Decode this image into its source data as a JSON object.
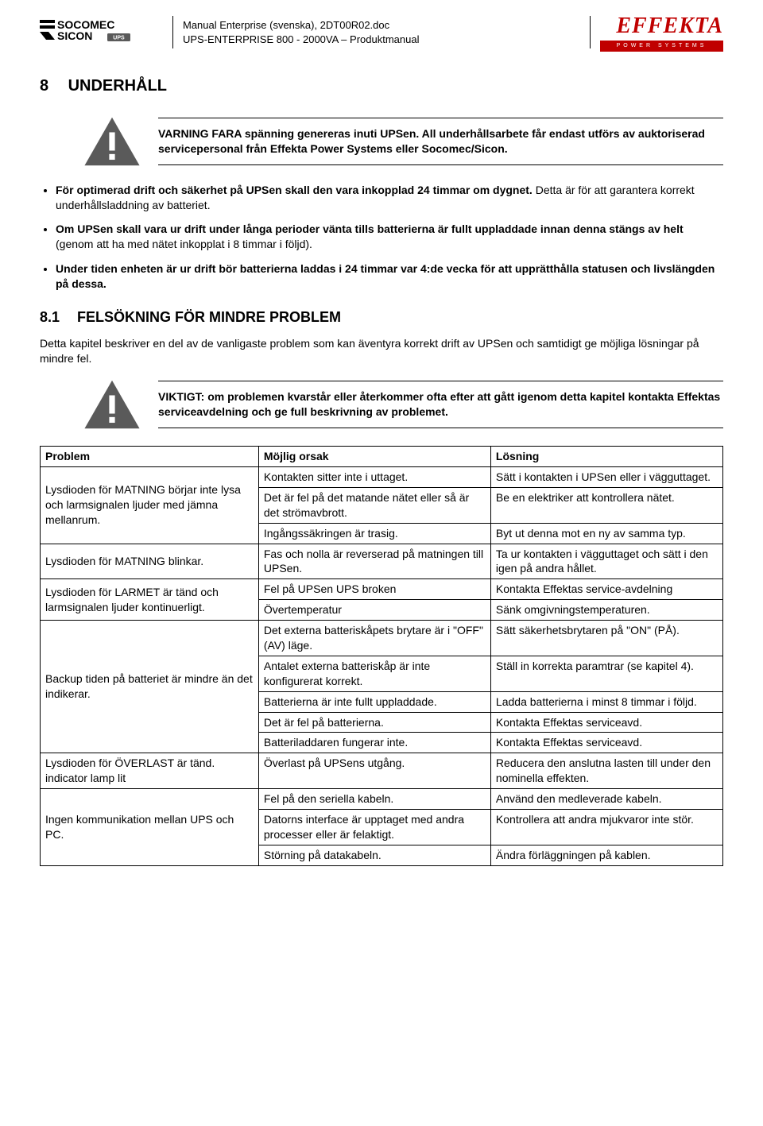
{
  "header": {
    "doc_line1": "Manual Enterprise (svenska), 2DT00R02.doc",
    "doc_line2": "UPS-ENTERPRISE 800 - 2000VA  – Produktmanual",
    "logo_left_line1": "SOCOMEC",
    "logo_left_line2": "SICON",
    "logo_left_tag": "UPS",
    "logo_right_word": "EFFEKTA",
    "logo_right_sub": "POWER SYSTEMS"
  },
  "section": {
    "num": "8",
    "title": "UNDERHÅLL"
  },
  "warning1": "VARNING FARA spänning genereras inuti UPSen. All underhållsarbete får endast utförs av auktoriserad servicepersonal från Effekta Power Systems eller Socomec/Sicon.",
  "bullets": [
    {
      "bold": "För optimerad drift och säkerhet på UPSen skall den vara inkopplad 24 timmar om dygnet.",
      "rest": " Detta är för att garantera korrekt underhållsladdning av batteriet."
    },
    {
      "bold": "Om UPSen skall vara ur drift under långa perioder vänta tills batterierna är fullt uppladdade innan denna stängs av helt",
      "rest": " (genom att ha med nätet inkopplat i 8 timmar i följd)."
    },
    {
      "bold": "Under tiden enheten är ur drift bör batterierna laddas i 24 timmar var 4:de vecka för att upprätthålla statusen och livslängden på dessa.",
      "rest": ""
    }
  ],
  "subsection": {
    "num": "8.1",
    "title": "FELSÖKNING FÖR MINDRE PROBLEM"
  },
  "intro_para": "Detta kapitel beskriver en del av de vanligaste problem som kan äventyra korrekt drift av UPSen och samtidigt ge möjliga lösningar på mindre fel.",
  "warning2": "VIKTIGT: om problemen kvarstår eller återkommer ofta efter att gått igenom detta kapitel kontakta Effektas serviceavdelning och ge full beskrivning av problemet.",
  "table": {
    "headers": {
      "c1": "Problem",
      "c2": "Möjlig orsak",
      "c3": "Lösning"
    },
    "groups": [
      {
        "problem": "Lysdioden för MATNING börjar inte lysa och larmsignalen ljuder med jämna mellanrum.",
        "rows": [
          [
            "Kontakten sitter inte i uttaget.",
            "Sätt i kontakten i UPSen eller i vägguttaget."
          ],
          [
            "Det är fel på det matande nätet eller så är det strömavbrott.",
            "Be en elektriker att kontrollera nätet."
          ],
          [
            "Ingångssäkringen är trasig.",
            "Byt ut denna mot en ny av samma typ."
          ]
        ]
      },
      {
        "problem": "Lysdioden för MATNING blinkar.",
        "rows": [
          [
            "Fas och nolla är reverserad på matningen till UPSen.",
            "Ta ur kontakten i vägguttaget och sätt i den igen på andra hållet."
          ]
        ]
      },
      {
        "problem": "Lysdioden för LARMET är tänd och larmsignalen ljuder kontinuerligt.",
        "rows": [
          [
            "Fel på UPSen UPS broken",
            "Kontakta Effektas service-avdelning"
          ],
          [
            "Övertemperatur",
            "Sänk omgivningstemperaturen."
          ]
        ]
      },
      {
        "problem": "Backup tiden på batteriet är mindre än det indikerar.",
        "rows": [
          [
            "Det externa batteriskåpets brytare är i \"OFF\" (AV) läge.",
            "Sätt säkerhetsbrytaren på \"ON\" (PÅ)."
          ],
          [
            "Antalet externa batteriskåp är inte konfigurerat korrekt.",
            "Ställ in korrekta paramtrar (se kapitel 4)."
          ],
          [
            "Batterierna är inte fullt uppladdade.",
            "Ladda batterierna i minst 8 timmar i följd."
          ],
          [
            "Det är fel på batterierna.",
            "Kontakta Effektas serviceavd."
          ],
          [
            "Batteriladdaren fungerar inte.",
            "Kontakta Effektas serviceavd."
          ]
        ]
      },
      {
        "problem": "Lysdioden för ÖVERLAST är tänd. indicator lamp lit",
        "rows": [
          [
            "Överlast på UPSens utgång.",
            "Reducera den anslutna lasten till under den nominella effekten."
          ]
        ]
      },
      {
        "problem": "Ingen kommunikation mellan UPS och PC.",
        "rows": [
          [
            "Fel på den seriella kabeln.",
            "Använd den medleverade kabeln."
          ],
          [
            "Datorns interface är upptaget med andra processer eller är felaktigt.",
            "Kontrollera att andra mjukvaror inte stör."
          ],
          [
            "Störning på datakabeln.",
            "Ändra förläggningen på kablen."
          ]
        ]
      }
    ]
  },
  "colors": {
    "text": "#000000",
    "bg": "#ffffff",
    "warning_fill": "#5a5a5a",
    "brand_red": "#c00000"
  }
}
